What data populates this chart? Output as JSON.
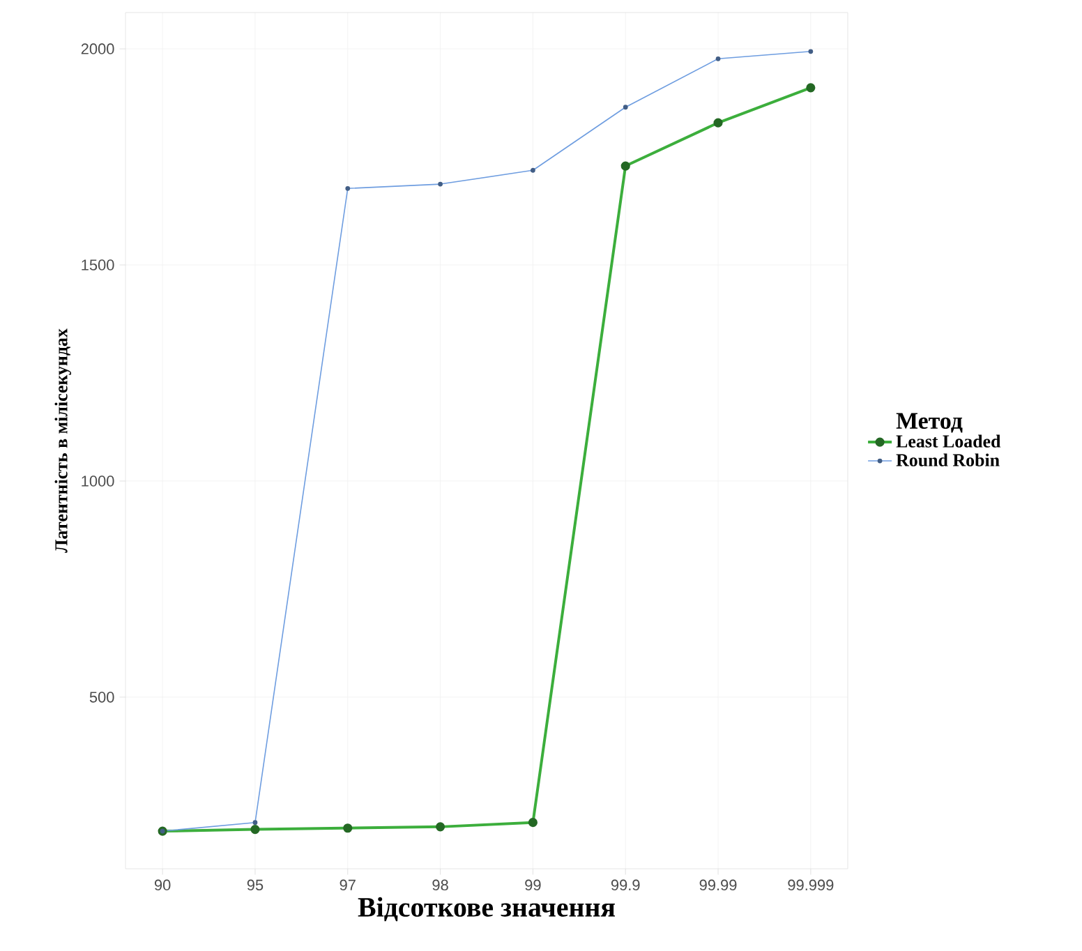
{
  "chart_data": {
    "type": "line",
    "xlabel": "Відсоткове значення",
    "ylabel": "Латентність в мілісекундах",
    "legend_title": "Метод",
    "categories": [
      "90",
      "95",
      "97",
      "98",
      "99",
      "99.9",
      "99.99",
      "99.999"
    ],
    "series": [
      {
        "name": "Least Loaded",
        "color": "#3cae3c",
        "values": [
          190,
          194,
          197,
          200,
          210,
          1729,
          1829,
          1910
        ]
      },
      {
        "name": "Round Robin",
        "color": "#6e9de0",
        "values": [
          190,
          210,
          1677,
          1687,
          1719,
          1865,
          1977,
          1994
        ]
      }
    ],
    "ylim": [
      103,
      2084
    ],
    "yticks": [
      500,
      1000,
      1500,
      2000
    ],
    "grid": true,
    "legend": "right",
    "marker": "circle",
    "line_style": "solid"
  }
}
